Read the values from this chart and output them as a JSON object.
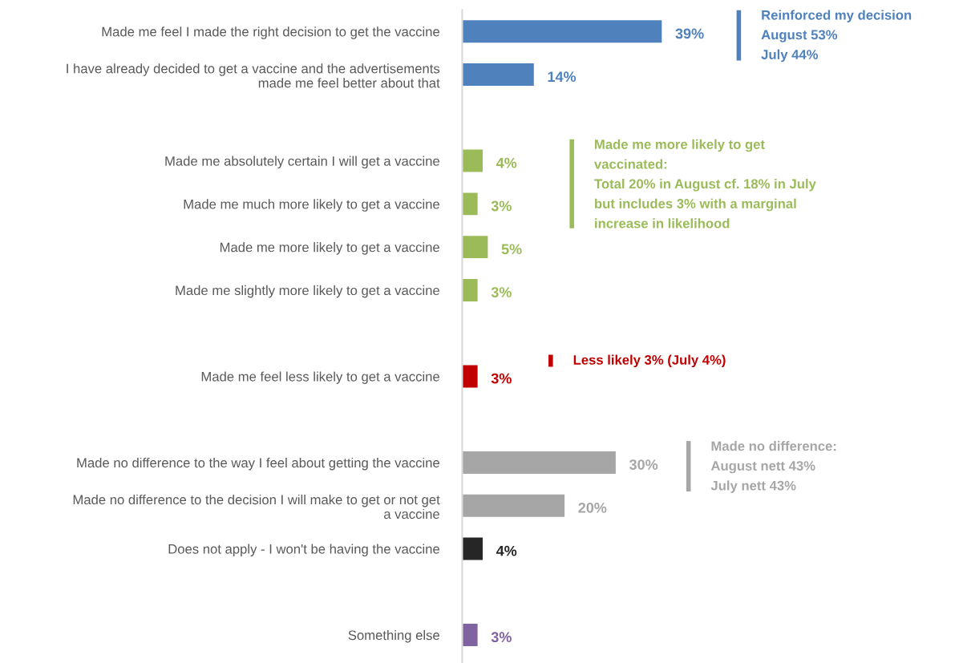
{
  "chart_data": {
    "type": "bar",
    "orientation": "horizontal",
    "categories": [
      "Made me feel I made the right decision to get the vaccine",
      "I have already decided to get a vaccine and the advertisements\nmade me feel better about that",
      null,
      "Made me absolutely certain I will get a vaccine",
      "Made me much more likely to get a vaccine",
      "Made me more likely to get a vaccine",
      "Made me slightly more likely to get a vaccine",
      null,
      "Made me feel less likely to get a vaccine",
      null,
      "Made no difference to the way I feel about getting the vaccine",
      "Made no difference to the decision I will make to get or not get\na vaccine",
      "Does not apply - I won't be having the vaccine",
      null,
      "Something else"
    ],
    "values": [
      39,
      14,
      null,
      4,
      3,
      5,
      3,
      null,
      3,
      null,
      30,
      20,
      4,
      null,
      3
    ],
    "colors": [
      "#4f81bd",
      "#4f81bd",
      null,
      "#9bbb59",
      "#9bbb59",
      "#9bbb59",
      "#9bbb59",
      null,
      "#c00000",
      null,
      "#a6a6a6",
      "#a6a6a6",
      "#262626",
      null,
      "#8064a2"
    ],
    "value_labels": [
      "39%",
      "14%",
      null,
      "4%",
      "3%",
      "5%",
      "3%",
      null,
      "3%",
      null,
      "30%",
      "20%",
      "4%",
      null,
      "3%"
    ],
    "annotations": [
      "Reinforced my decision\nAugust 53%\nJuly 44%",
      "Made me more likely to get\nvaccinated:\nTotal 20% in August cf. 18% in July\nbut includes 3% with a marginal\nincrease in likelihood",
      "Less likely 3% (July 4%)",
      "Made no difference:\nAugust nett 43%\nJuly nett 43%"
    ]
  }
}
